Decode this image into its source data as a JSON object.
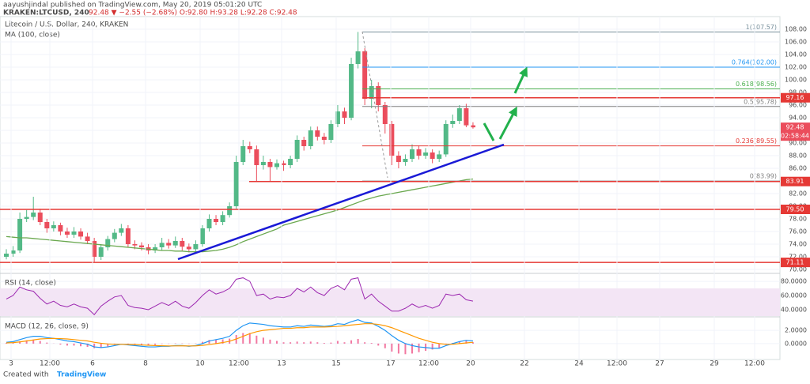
{
  "header": {
    "publisher": "aayushjindal published on TradingView.com, May 20, 2019 05:01:20 UTC",
    "symbol": "KRAKEN:LTCUSD, 240",
    "quote": "92.48 ▼ −2.55 (−2.68%) O:92.80 H:93.28 L:92.28 C:92.48"
  },
  "footer": {
    "created_with": "Created with",
    "brand": "TradingView"
  },
  "chart_data": [
    {
      "type": "candlestick",
      "title": "Litecoin / U.S. Dollar, 240, KRAKEN",
      "up_color": "#53b987",
      "down_color": "#eb4d5c",
      "candles": [
        [
          72,
          73.2,
          71.6,
          72.5
        ],
        [
          72.5,
          73.7,
          72,
          73
        ],
        [
          73,
          79,
          72.6,
          78
        ],
        [
          78,
          79.4,
          77.5,
          78.3
        ],
        [
          78.3,
          81.5,
          77.8,
          79
        ],
        [
          79,
          79.6,
          77,
          77.5
        ],
        [
          77.5,
          78,
          75.8,
          76.5
        ],
        [
          76.5,
          77.6,
          76,
          77
        ],
        [
          77,
          77.4,
          75.4,
          76
        ],
        [
          76,
          76.6,
          75,
          75.5
        ],
        [
          75.5,
          76.7,
          75,
          76
        ],
        [
          76,
          76.5,
          74.7,
          75.2
        ],
        [
          75.2,
          75.8,
          74,
          74.5
        ],
        [
          74.5,
          75,
          71.2,
          72
        ],
        [
          72,
          74,
          71.5,
          73.5
        ],
        [
          73.5,
          75.3,
          73,
          74.8
        ],
        [
          74.8,
          76.4,
          74.3,
          75.8
        ],
        [
          75.8,
          77.2,
          75.3,
          76.5
        ],
        [
          76.5,
          77,
          73.5,
          74
        ],
        [
          74,
          74.6,
          73.2,
          73.8
        ],
        [
          73.8,
          74.3,
          73,
          73.5
        ],
        [
          73.5,
          74,
          72.4,
          73
        ],
        [
          73,
          74,
          72.6,
          73.5
        ],
        [
          73.5,
          75,
          73,
          74.2
        ],
        [
          74.2,
          74.8,
          73.3,
          73.8
        ],
        [
          73.8,
          75.2,
          73.4,
          74.5
        ],
        [
          74.5,
          75,
          73,
          73.6
        ],
        [
          73.6,
          74.1,
          72.7,
          73.2
        ],
        [
          73.2,
          74.6,
          72.8,
          74
        ],
        [
          74,
          77,
          73.6,
          76.5
        ],
        [
          76.5,
          78.7,
          76,
          78
        ],
        [
          78,
          78.6,
          77,
          77.5
        ],
        [
          77.5,
          79.2,
          77,
          78.6
        ],
        [
          78.6,
          80.6,
          78.2,
          80
        ],
        [
          80,
          88,
          79.6,
          87
        ],
        [
          87,
          90.5,
          86.5,
          89.5
        ],
        [
          89.5,
          90.2,
          88.4,
          89
        ],
        [
          89,
          89.6,
          84,
          86.5
        ],
        [
          86.5,
          88,
          85.8,
          87
        ],
        [
          87,
          87.5,
          84,
          86.2
        ],
        [
          86.2,
          87.4,
          85.8,
          86.8
        ],
        [
          86.8,
          87.2,
          85.6,
          86.5
        ],
        [
          86.5,
          88,
          86,
          87.5
        ],
        [
          87.5,
          91.2,
          87,
          90.5
        ],
        [
          90.5,
          91,
          88.8,
          89.5
        ],
        [
          89.5,
          92.6,
          89,
          92
        ],
        [
          92,
          92.6,
          90.4,
          91
        ],
        [
          91,
          91.6,
          89.8,
          90.5
        ],
        [
          90.5,
          93.6,
          90,
          93
        ],
        [
          93,
          96,
          92.5,
          95
        ],
        [
          95,
          95.6,
          93,
          94
        ],
        [
          94,
          103.5,
          93.6,
          102.5
        ],
        [
          102.5,
          107.57,
          101.8,
          104.5
        ],
        [
          104.5,
          105,
          96,
          97
        ],
        [
          97,
          100,
          95.5,
          99
        ],
        [
          99,
          99.6,
          95,
          96
        ],
        [
          96,
          96.5,
          91.5,
          93
        ],
        [
          93,
          93.5,
          86.5,
          88
        ],
        [
          88,
          88.7,
          86,
          87
        ],
        [
          87,
          88.2,
          86.4,
          87.5
        ],
        [
          87.5,
          89.8,
          87,
          89
        ],
        [
          89,
          89.6,
          87.4,
          88
        ],
        [
          88,
          89.2,
          87.5,
          88.5
        ],
        [
          88.5,
          89,
          86.8,
          87.5
        ],
        [
          87.5,
          88.8,
          87,
          88.2
        ],
        [
          88.2,
          93.6,
          87.8,
          93
        ],
        [
          93,
          94.5,
          92.4,
          93.5
        ],
        [
          93.5,
          96,
          93,
          95.5
        ],
        [
          95.5,
          96.2,
          92.5,
          92.8
        ],
        [
          92.8,
          93.28,
          92.28,
          92.48
        ]
      ],
      "series": [
        {
          "name": "MA (100, close)",
          "color": "#6aa84f",
          "values": [
            75.2,
            75.1,
            75,
            75,
            74.9,
            74.8,
            74.7,
            74.6,
            74.5,
            74.4,
            74.3,
            74.2,
            74.1,
            74,
            73.9,
            73.8,
            73.7,
            73.6,
            73.5,
            73.4,
            73.3,
            73.2,
            73.1,
            73,
            73,
            72.9,
            72.9,
            72.8,
            72.8,
            72.8,
            72.9,
            73,
            73.2,
            73.5,
            73.9,
            74.4,
            74.8,
            75.2,
            75.6,
            76,
            76.4,
            77,
            77.3,
            77.6,
            77.9,
            78.2,
            78.5,
            78.8,
            79.1,
            79.4,
            79.8,
            80.2,
            80.6,
            81,
            81.3,
            81.6,
            81.8,
            82,
            82.2,
            82.4,
            82.6,
            82.8,
            83,
            83.2,
            83.4,
            83.6,
            83.8,
            84,
            84.2,
            84.3
          ]
        }
      ],
      "ylim": [
        69.5,
        110
      ],
      "yticks": [
        {
          "value": 70,
          "label": "70.00"
        },
        {
          "value": 72,
          "label": "72.00"
        },
        {
          "value": 74,
          "label": "74.00"
        },
        {
          "value": 76,
          "label": "76.00"
        },
        {
          "value": 78,
          "label": "78.00"
        },
        {
          "value": 80,
          "label": "80.00"
        },
        {
          "value": 82,
          "label": "82.00"
        },
        {
          "value": 84,
          "label": "84.00"
        },
        {
          "value": 86,
          "label": "86.00"
        },
        {
          "value": 88,
          "label": "88.00"
        },
        {
          "value": 90,
          "label": "90.00"
        },
        {
          "value": 92,
          "label": "92.00"
        },
        {
          "value": 94,
          "label": "94.00"
        },
        {
          "value": 96,
          "label": "96.00"
        },
        {
          "value": 98,
          "label": "98.00"
        },
        {
          "value": 100,
          "label": "100.00"
        },
        {
          "value": 102,
          "label": "102.00"
        },
        {
          "value": 104,
          "label": "104.00"
        },
        {
          "value": 106,
          "label": "106.00"
        },
        {
          "value": 108,
          "label": "108.00"
        }
      ],
      "grid": true,
      "levels": [
        {
          "value": 97.16,
          "label": "97.16"
        },
        {
          "value": 83.91,
          "label": "83.91"
        },
        {
          "value": 79.5,
          "label": "79.50"
        },
        {
          "value": 71.11,
          "label": "71.11"
        }
      ],
      "level_color": "#e53935",
      "fib": [
        {
          "value": 107.57,
          "label": "1(107.57)",
          "color": "#78909c"
        },
        {
          "value": 102,
          "label": "0.764(102.00)",
          "color": "#2196f3"
        },
        {
          "value": 98.56,
          "label": "0.618(98.56)",
          "color": "#4caf50"
        },
        {
          "value": 95.78,
          "label": "0.5(95.78)",
          "color": "#808080"
        },
        {
          "value": 89.55,
          "label": "0.236(89.55)",
          "color": "#e53935"
        },
        {
          "value": 83.99,
          "label": "0(83.99)",
          "color": "#808080"
        }
      ],
      "last_price": {
        "value": 92.48,
        "countdown": "02:58:44"
      },
      "x_labels": [
        "3",
        "12:00",
        "6",
        "8",
        "10",
        "12:00",
        "13",
        "15",
        "17",
        "12:00",
        "20",
        "22",
        "24",
        "12:00",
        "27",
        "29",
        "12:00"
      ]
    },
    {
      "type": "line",
      "title": "RSI (14, close)",
      "series": [
        {
          "color": "#9c27b0",
          "values": [
            55,
            60,
            72,
            68,
            66,
            56,
            48,
            52,
            46,
            44,
            48,
            44,
            42,
            33,
            45,
            52,
            58,
            60,
            46,
            43,
            42,
            40,
            45,
            50,
            46,
            52,
            45,
            42,
            50,
            60,
            68,
            62,
            65,
            70,
            83,
            85,
            80,
            60,
            62,
            55,
            58,
            57,
            60,
            70,
            65,
            72,
            64,
            60,
            70,
            74,
            68,
            83,
            85,
            55,
            62,
            52,
            45,
            38,
            38,
            42,
            48,
            43,
            46,
            42,
            46,
            62,
            60,
            62,
            54,
            52
          ]
        }
      ],
      "ylim": [
        31,
        89
      ],
      "yticks": [
        {
          "value": 80,
          "label": "80.0000"
        },
        {
          "value": 60,
          "label": "60.0000"
        },
        {
          "value": 40,
          "label": "40.0000"
        }
      ],
      "band": [
        30,
        70
      ],
      "band_color": "#f3e5f5"
    },
    {
      "type": "macd",
      "title": "MACD (12, 26, close, 9)",
      "series": [
        {
          "color": "#2196f3",
          "values": [
            0.2,
            0.3,
            0.6,
            0.9,
            1.1,
            1.1,
            0.9,
            0.8,
            0.6,
            0.4,
            0.3,
            0.1,
            -0.1,
            -0.5,
            -0.6,
            -0.5,
            -0.3,
            -0.1,
            -0.2,
            -0.3,
            -0.4,
            -0.5,
            -0.5,
            -0.4,
            -0.4,
            -0.3,
            -0.3,
            -0.4,
            -0.3,
            0,
            0.4,
            0.6,
            0.8,
            1.1,
            2,
            2.7,
            3.1,
            3,
            2.9,
            2.7,
            2.6,
            2.5,
            2.5,
            2.7,
            2.6,
            2.8,
            2.7,
            2.6,
            2.7,
            3,
            2.9,
            3.3,
            3.6,
            3.2,
            3.1,
            2.6,
            2,
            1.2,
            0.5,
            0,
            -0.3,
            -0.5,
            -0.6,
            -0.7,
            -0.7,
            -0.3,
            0,
            0.3,
            0.5,
            0.4
          ]
        },
        {
          "color": "#ff9800",
          "values": [
            0.1,
            0.15,
            0.25,
            0.4,
            0.55,
            0.7,
            0.75,
            0.78,
            0.75,
            0.7,
            0.6,
            0.5,
            0.4,
            0.2,
            0.05,
            -0.05,
            -0.1,
            -0.1,
            -0.12,
            -0.15,
            -0.2,
            -0.25,
            -0.3,
            -0.33,
            -0.35,
            -0.35,
            -0.34,
            -0.35,
            -0.34,
            -0.27,
            -0.14,
            0,
            0.16,
            0.35,
            0.7,
            1.1,
            1.5,
            1.8,
            2,
            2.1,
            2.2,
            2.3,
            2.3,
            2.4,
            2.4,
            2.5,
            2.5,
            2.5,
            2.55,
            2.6,
            2.7,
            2.8,
            2.9,
            3,
            3,
            2.9,
            2.7,
            2.4,
            2,
            1.6,
            1.2,
            0.8,
            0.5,
            0.2,
            0,
            -0.1,
            -0.1,
            0,
            0.1,
            0.2
          ]
        }
      ],
      "histogram": {
        "color": "#e91e63",
        "values": [
          0.1,
          0.15,
          0.35,
          0.5,
          0.55,
          0.4,
          0.15,
          0.02,
          -0.15,
          -0.3,
          -0.3,
          -0.4,
          -0.5,
          -0.7,
          -0.65,
          -0.45,
          -0.2,
          0,
          -0.08,
          -0.15,
          -0.2,
          -0.25,
          -0.2,
          -0.07,
          -0.05,
          0.05,
          0.04,
          -0.05,
          0.04,
          0.27,
          0.54,
          0.6,
          0.64,
          0.75,
          1.3,
          1.6,
          1.6,
          1.2,
          0.9,
          0.6,
          0.4,
          0.2,
          0.2,
          0.3,
          0.2,
          0.3,
          0.2,
          0.1,
          0.15,
          0.4,
          0.2,
          0.5,
          0.7,
          0.2,
          0.1,
          -0.3,
          -0.7,
          -1.2,
          -1.5,
          -1.6,
          -1.5,
          -1.3,
          -1.1,
          -0.9,
          -0.7,
          -0.2,
          0.1,
          0.3,
          0.4,
          0.2
        ]
      },
      "ylim": [
        -2.4,
        3.8
      ],
      "yticks": [
        {
          "value": 0,
          "label": "0.0000"
        },
        {
          "value": 2,
          "label": "2.0000"
        }
      ]
    }
  ]
}
